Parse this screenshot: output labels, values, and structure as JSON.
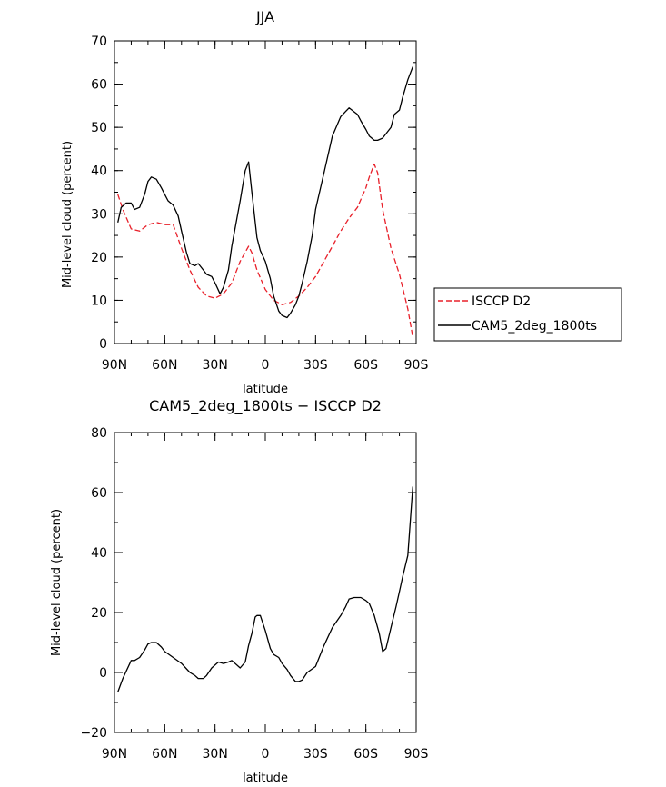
{
  "chart_data": [
    {
      "type": "line",
      "title": "JJA",
      "xlabel": "latitude",
      "ylabel": "Mid-level cloud (percent)",
      "xlim": [
        90,
        -90
      ],
      "ylim": [
        0,
        70
      ],
      "xticks": [
        90,
        60,
        30,
        0,
        -30,
        -60,
        -90
      ],
      "xtick_labels": [
        "90N",
        "60N",
        "30N",
        "0",
        "30S",
        "60S",
        "90S"
      ],
      "yticks": [
        0,
        10,
        20,
        30,
        40,
        50,
        60,
        70
      ],
      "ytick_labels": [
        "0",
        "10",
        "20",
        "30",
        "40",
        "50",
        "60",
        "70"
      ],
      "legend_position": "outside-right",
      "series": [
        {
          "name": "ISCCP D2",
          "color": "#e8202a",
          "dash": "dashed",
          "x": [
            88,
            85,
            80,
            75,
            70,
            65,
            60,
            55,
            50,
            45,
            40,
            35,
            30,
            25,
            20,
            15,
            10,
            8,
            5,
            0,
            -5,
            -10,
            -15,
            -20,
            -25,
            -30,
            -35,
            -40,
            -45,
            -50,
            -55,
            -60,
            -62,
            -65,
            -67,
            -70,
            -75,
            -80,
            -85,
            -88
          ],
          "y": [
            34.5,
            31,
            26.5,
            26,
            27.5,
            28,
            27.5,
            27.5,
            22,
            17,
            13,
            11,
            10.5,
            11.5,
            14,
            19,
            22.5,
            21,
            17,
            12.5,
            10,
            9,
            9.5,
            11,
            13,
            15.5,
            19,
            22.5,
            26,
            29,
            31.5,
            36,
            38.5,
            41.5,
            39.5,
            31,
            22,
            16,
            8,
            1.5
          ]
        },
        {
          "name": "CAM5_2deg_1800ts",
          "color": "#000000",
          "dash": "solid",
          "x": [
            88,
            86,
            83,
            80,
            78,
            75,
            72,
            70,
            68,
            65,
            62,
            60,
            58,
            55,
            52,
            50,
            47,
            45,
            42,
            40,
            37,
            35,
            32,
            30,
            27,
            25,
            22,
            20,
            15,
            12,
            10,
            8,
            5,
            3,
            0,
            -3,
            -5,
            -8,
            -10,
            -13,
            -15,
            -18,
            -20,
            -22,
            -25,
            -28,
            -30,
            -35,
            -40,
            -45,
            -50,
            -55,
            -57,
            -60,
            -62,
            -65,
            -67,
            -70,
            -73,
            -75,
            -77,
            -80,
            -82,
            -85,
            -88
          ],
          "y": [
            28,
            31.5,
            32.5,
            32.5,
            31,
            31.5,
            34.5,
            37.5,
            38.5,
            38,
            36,
            34.5,
            33,
            32,
            29.5,
            26,
            21,
            18.5,
            18,
            18.5,
            17,
            16,
            15.5,
            14,
            11.5,
            13,
            17,
            22.5,
            33,
            40,
            42,
            35,
            24.5,
            21.5,
            19,
            15,
            11,
            7.5,
            6.5,
            6,
            7,
            9,
            11,
            14,
            19,
            25,
            31,
            39.5,
            48,
            52.5,
            54.5,
            53,
            51.5,
            49.5,
            48,
            47,
            47,
            47.5,
            49,
            50,
            53,
            54,
            57,
            61,
            64
          ]
        }
      ]
    },
    {
      "type": "line",
      "title": "CAM5_2deg_1800ts − ISCCP D2",
      "xlabel": "latitude",
      "ylabel": "Mid-level cloud (percent)",
      "xlim": [
        90,
        -90
      ],
      "ylim": [
        -20,
        80
      ],
      "xticks": [
        90,
        60,
        30,
        0,
        -30,
        -60,
        -90
      ],
      "xtick_labels": [
        "90N",
        "60N",
        "30N",
        "0",
        "30S",
        "60S",
        "90S"
      ],
      "yticks": [
        -20,
        0,
        20,
        40,
        60,
        80
      ],
      "ytick_labels": [
        "−20",
        "0",
        "20",
        "40",
        "60",
        "80"
      ],
      "series": [
        {
          "color": "#000000",
          "dash": "solid",
          "x": [
            88,
            85,
            80,
            78,
            75,
            72,
            70,
            68,
            65,
            62,
            60,
            55,
            50,
            45,
            42,
            40,
            37,
            35,
            32,
            30,
            28,
            25,
            22,
            20,
            15,
            12,
            10,
            8,
            6,
            5,
            3,
            0,
            -3,
            -5,
            -8,
            -10,
            -13,
            -15,
            -18,
            -20,
            -22,
            -25,
            -30,
            -35,
            -40,
            -45,
            -48,
            -50,
            -53,
            -55,
            -57,
            -60,
            -62,
            -65,
            -68,
            -70,
            -72,
            -75,
            -78,
            -80,
            -82,
            -85,
            -88
          ],
          "y": [
            -6.5,
            -2,
            4,
            4,
            5,
            7.5,
            9.5,
            10,
            10,
            8.5,
            7,
            5,
            3,
            0,
            -1,
            -2,
            -2,
            -1,
            1.5,
            2.5,
            3.5,
            3,
            3.5,
            4,
            1.5,
            3.5,
            9,
            13,
            18.5,
            19,
            19,
            14,
            8,
            6,
            5,
            3,
            1,
            -1,
            -3,
            -3,
            -2.5,
            0,
            2,
            9,
            15,
            19,
            22,
            24.5,
            25,
            25,
            25,
            24,
            23,
            19,
            13,
            7,
            8,
            15,
            22,
            27,
            32,
            39,
            62
          ]
        }
      ]
    }
  ],
  "legend": {
    "items": [
      {
        "label": "ISCCP D2"
      },
      {
        "label": "CAM5_2deg_1800ts"
      }
    ]
  }
}
